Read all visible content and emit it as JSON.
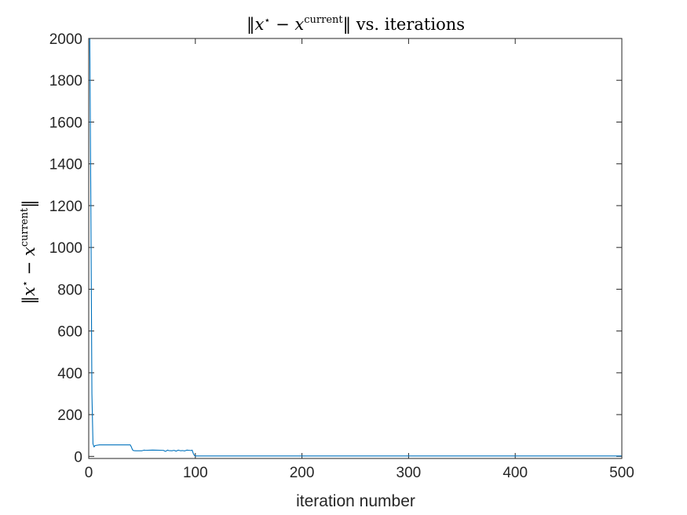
{
  "chart_data": {
    "type": "line",
    "title": {
      "norm_open": "‖",
      "x": "x",
      "star": "⋆",
      "minus": " − ",
      "x2": "x",
      "superscript": "current",
      "norm_close": "‖",
      "suffix": " vs. iterations"
    },
    "xlabel": "iteration number",
    "ylabel": {
      "norm_open": "‖",
      "x": "x",
      "star": "⋆",
      "minus": " − ",
      "x2": "x",
      "superscript": "current",
      "norm_close": "‖"
    },
    "xlim": [
      0,
      500
    ],
    "ylim": [
      -10,
      2000
    ],
    "xticks": [
      0,
      100,
      200,
      300,
      400,
      500
    ],
    "yticks": [
      0,
      200,
      400,
      600,
      800,
      1000,
      1200,
      1400,
      1600,
      1800,
      2000
    ],
    "grid": false,
    "legend": "none",
    "series": [
      {
        "color": "#0072BD",
        "x": [
          1,
          2,
          3,
          4,
          5,
          6,
          10,
          20,
          30,
          39,
          40,
          41,
          42,
          44,
          50,
          52,
          53,
          60,
          70,
          72,
          74,
          75,
          78,
          80,
          82,
          84,
          86,
          88,
          90,
          92,
          94,
          96,
          97,
          98,
          99,
          100,
          150,
          200,
          300,
          400,
          500
        ],
        "y": [
          2000,
          1200,
          300,
          60,
          45,
          52,
          55,
          55,
          55,
          55,
          45,
          32,
          28,
          27,
          27,
          30,
          29,
          30,
          29,
          24,
          30,
          28,
          27,
          29,
          25,
          30,
          27,
          28,
          26,
          30,
          29,
          28,
          30,
          15,
          5,
          2,
          2,
          2,
          2,
          2,
          2
        ]
      }
    ]
  }
}
